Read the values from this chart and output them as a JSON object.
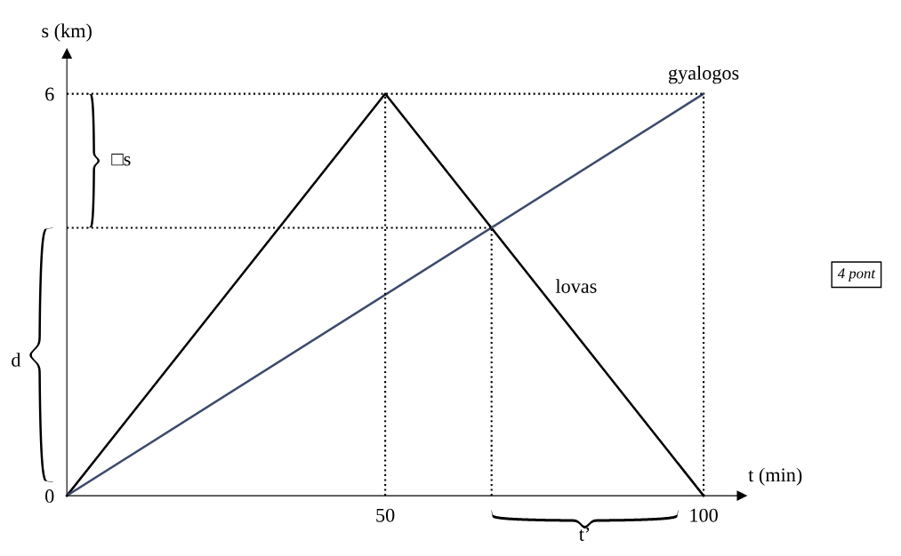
{
  "chart_data": {
    "type": "line",
    "xlabel": "t (min)",
    "ylabel": "s (km)",
    "xlim": [
      -10.5,
      131
    ],
    "ylim": [
      -0.9,
      7.4
    ],
    "xticks": [
      50,
      100
    ],
    "yticks": [
      0,
      6
    ],
    "grid": false,
    "marker": "none",
    "series": [
      {
        "color": "#000000",
        "x": [
          0,
          50,
          100
        ],
        "values": [
          0,
          6,
          0
        ],
        "line_style": "solid"
      },
      {
        "color": "#3d4a6b",
        "x": [
          0,
          100
        ],
        "values": [
          0,
          6
        ],
        "line_style": "solid"
      },
      {
        "color": "#000000",
        "x": [
          0,
          100
        ],
        "values": [
          6,
          6
        ],
        "line_style": "dotted"
      },
      {
        "color": "#000000",
        "x": [
          0,
          66.7
        ],
        "values": [
          4,
          4
        ],
        "line_style": "dotted"
      },
      {
        "color": "#000000",
        "x": [
          50,
          50
        ],
        "values": [
          0,
          6
        ],
        "line_style": "dotted"
      },
      {
        "color": "#000000",
        "x": [
          66.7,
          66.7
        ],
        "values": [
          0,
          4
        ],
        "line_style": "dotted"
      },
      {
        "color": "#000000",
        "x": [
          100,
          100
        ],
        "values": [
          0,
          6
        ],
        "line_style": "dotted"
      }
    ],
    "annotations": [
      {
        "text": "gyalogos",
        "x": 100,
        "y": 6
      },
      "lovas",
      "□s",
      "d",
      "t’",
      "4 pont"
    ]
  }
}
